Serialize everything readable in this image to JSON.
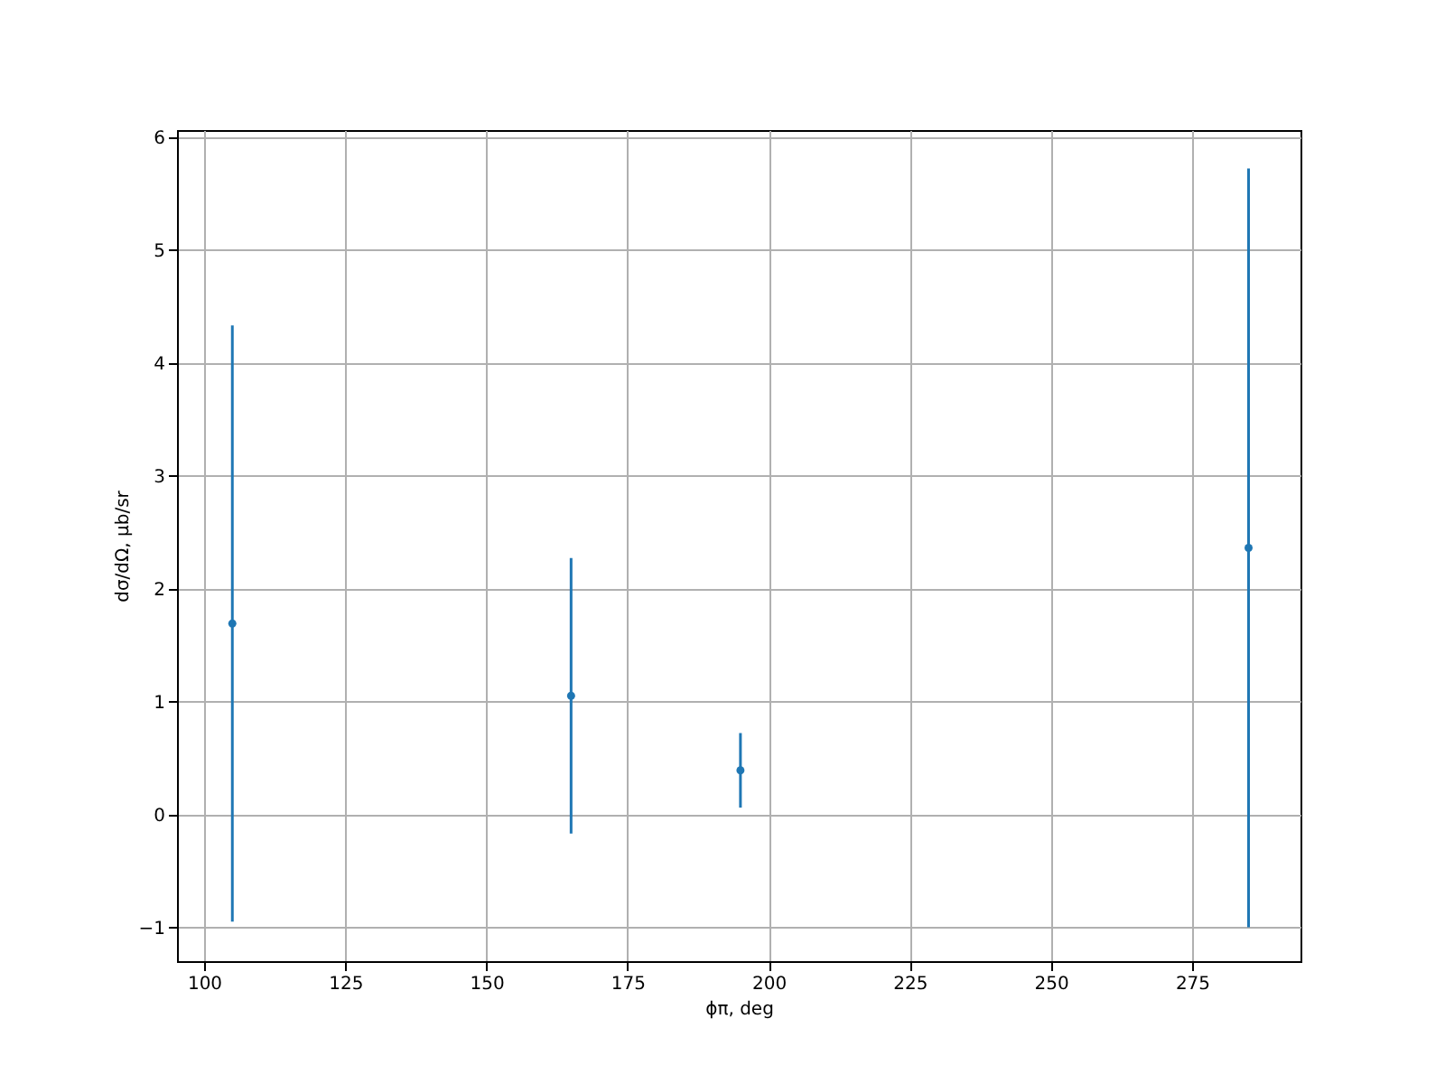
{
  "chart_data": {
    "type": "scatter",
    "xlabel": "ϕπ, deg",
    "ylabel": "dσ/dΩ, μb/sr",
    "x": [
      105,
      165,
      195,
      285
    ],
    "series": [
      {
        "color": "#1f77b4",
        "values": [
          1.69,
          1.05,
          0.39,
          2.36
        ],
        "errors": [
          2.64,
          1.22,
          0.33,
          3.36
        ]
      }
    ],
    "xlim": [
      95.2,
      294.2
    ],
    "ylim": [
      -1.3,
      6.06
    ],
    "xticks": [
      100,
      125,
      150,
      175,
      200,
      225,
      250,
      275
    ],
    "yticks": [
      -1,
      0,
      1,
      2,
      3,
      4,
      5,
      6
    ],
    "grid": true,
    "marker": "circle"
  }
}
